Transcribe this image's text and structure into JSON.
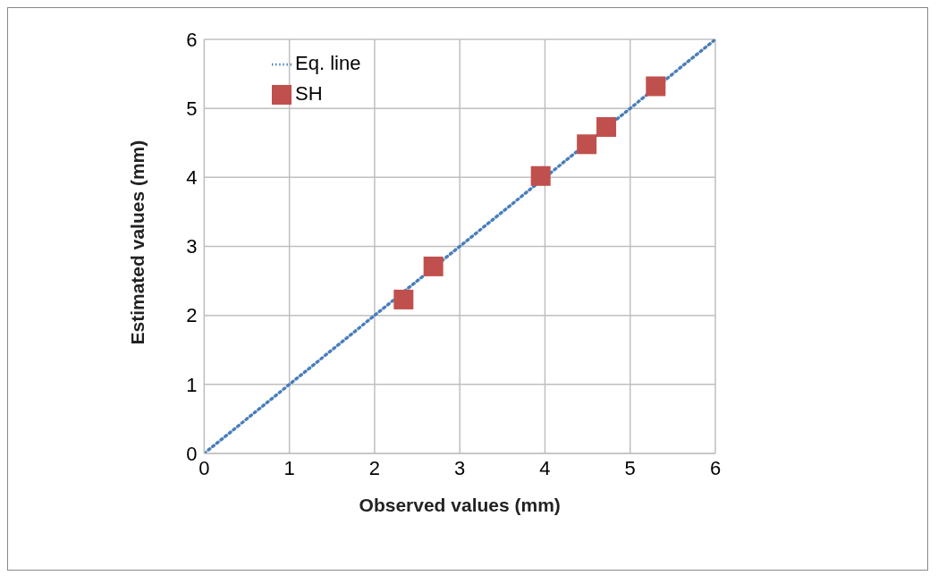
{
  "chart_data": {
    "type": "scatter",
    "xlabel": "Observed values (mm)",
    "ylabel": "Estimated values (mm)",
    "xlim": [
      0,
      6
    ],
    "ylim": [
      0,
      6
    ],
    "xticks": [
      0,
      1,
      2,
      3,
      4,
      5,
      6
    ],
    "yticks": [
      0,
      1,
      2,
      3,
      4,
      5,
      6
    ],
    "grid": true,
    "legend": "top left",
    "series": [
      {
        "name": "Eq. line",
        "type": "line",
        "color": "#4a7ebb",
        "line_style": "dotted",
        "marker": "none",
        "x": [
          0,
          6
        ],
        "values": [
          0,
          6
        ]
      },
      {
        "name": "SH",
        "type": "scatter",
        "color": "#c0504d",
        "marker": "square",
        "x": [
          2.34,
          2.69,
          3.95,
          4.49,
          4.72,
          5.3
        ],
        "values": [
          2.23,
          2.71,
          4.02,
          4.48,
          4.73,
          5.32
        ]
      }
    ]
  }
}
